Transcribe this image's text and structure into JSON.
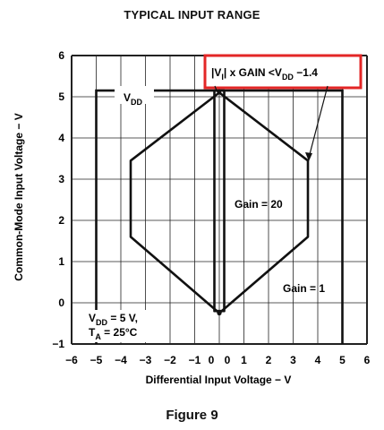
{
  "title": "TYPICAL INPUT RANGE",
  "figure_caption": "Figure 9",
  "colors": {
    "highlight": "#e32626",
    "ink": "#111111",
    "grid": "#222222"
  },
  "chart_data": {
    "type": "line",
    "title": "TYPICAL INPUT RANGE",
    "xlabel": "Differential Input Voltage − V",
    "ylabel": "Common-Mode Input Voltage − V",
    "xlim": [
      -6,
      6
    ],
    "ylim": [
      -1,
      6
    ],
    "grid": true,
    "x_ticks": [
      "−6",
      "−5",
      "−4",
      "−3",
      "−2",
      "−1",
      "0",
      "0",
      "1",
      "2",
      "3",
      "4",
      "5",
      "6"
    ],
    "y_ticks": [
      "−1",
      "0",
      "1",
      "2",
      "3",
      "4",
      "5",
      "6"
    ],
    "series": [
      {
        "name": "Gain = 20",
        "x": [
          0,
          3.6,
          3.6,
          0,
          -3.6,
          -3.6,
          0
        ],
        "y": [
          5.1,
          3.45,
          1.6,
          -0.25,
          1.6,
          3.45,
          5.1
        ]
      },
      {
        "name": "Gain = 1",
        "x": [
          -0.2,
          0.2,
          0.2,
          -0.2,
          -0.2
        ],
        "y": [
          5.15,
          5.15,
          -0.2,
          -0.2,
          5.15
        ]
      }
    ],
    "vdd_boundary": {
      "x": [
        -5,
        -5,
        5,
        5
      ],
      "y": [
        -1,
        5.15,
        5.15,
        -1
      ]
    },
    "annotations": {
      "vdd": {
        "main": "V",
        "sub": "DD"
      },
      "gain20": "Gain = 20",
      "gain1": "Gain = 1",
      "conditions_line1": {
        "main": "V",
        "sub": "DD",
        "rest": " = 5 V,"
      },
      "conditions_line2": {
        "main": "T",
        "sub": "A",
        "rest": " = 25°C"
      },
      "equation": {
        "bar_left": "|",
        "v": "V",
        "sub": "I",
        "bar_right": "|",
        "mid": " x GAIN <V",
        "sub2": "DD",
        "end": " −1.4"
      }
    }
  }
}
